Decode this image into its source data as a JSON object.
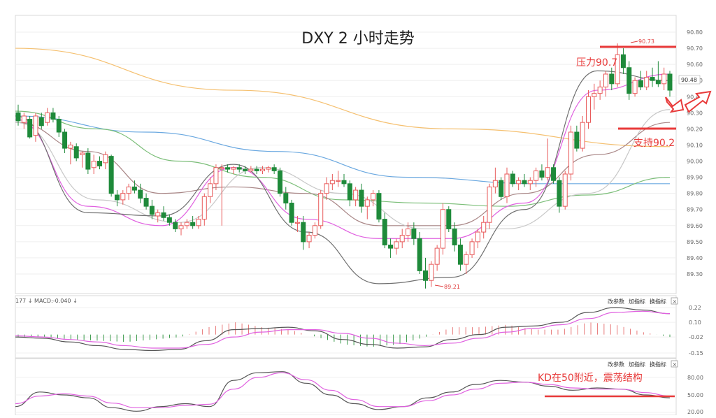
{
  "chart_data": [
    {
      "type": "candlestick",
      "title": "DXY 2 小时走势",
      "y_ticks": [
        "90.80",
        "90.70",
        "90.60",
        "90.50",
        "90.40",
        "90.30",
        "90.20",
        "90.10",
        "90.00",
        "89.90",
        "89.80",
        "89.70",
        "89.60",
        "89.50",
        "89.40",
        "89.30"
      ],
      "ylim": [
        89.21,
        90.85
      ],
      "last_price_label": "90.48",
      "high_label": "90.73",
      "low_label": "89.21",
      "high": 90.73,
      "low": 89.21,
      "grid": true,
      "annotations": [
        {
          "text": "压力90.7",
          "value": 90.7
        },
        {
          "text": "支持90.2",
          "value": 90.2
        }
      ],
      "series": [
        {
          "kind": "ohlc",
          "values": [
            [
              90.3,
              90.35,
              90.22,
              90.25
            ],
            [
              90.24,
              90.3,
              90.2,
              90.28
            ],
            [
              90.26,
              90.28,
              90.14,
              90.15
            ],
            [
              90.16,
              90.3,
              90.12,
              90.28
            ],
            [
              90.27,
              90.3,
              90.2,
              90.22
            ],
            [
              90.24,
              90.33,
              90.22,
              90.3
            ],
            [
              90.3,
              90.33,
              90.24,
              90.26
            ],
            [
              90.26,
              90.28,
              90.15,
              90.18
            ],
            [
              90.18,
              90.2,
              90.05,
              90.08
            ],
            [
              90.08,
              90.12,
              89.98,
              90.1
            ],
            [
              90.09,
              90.11,
              90.0,
              90.02
            ],
            [
              90.04,
              90.06,
              89.96,
              90.05
            ],
            [
              90.05,
              90.08,
              89.92,
              89.95
            ],
            [
              89.96,
              90.04,
              89.92,
              90.0
            ],
            [
              90.0,
              90.03,
              89.95,
              89.97
            ],
            [
              89.99,
              90.06,
              89.95,
              90.04
            ],
            [
              90.03,
              90.04,
              89.78,
              89.8
            ],
            [
              89.79,
              89.82,
              89.72,
              89.76
            ],
            [
              89.76,
              89.82,
              89.73,
              89.8
            ],
            [
              89.8,
              89.86,
              89.76,
              89.84
            ],
            [
              89.84,
              89.88,
              89.8,
              89.82
            ],
            [
              89.82,
              89.86,
              89.74,
              89.77
            ],
            [
              89.77,
              89.8,
              89.7,
              89.72
            ],
            [
              89.72,
              89.76,
              89.64,
              89.67
            ],
            [
              89.66,
              89.7,
              89.62,
              89.68
            ],
            [
              89.68,
              89.72,
              89.63,
              89.65
            ],
            [
              89.65,
              89.67,
              89.6,
              89.62
            ],
            [
              89.62,
              89.64,
              89.56,
              89.58
            ],
            [
              89.58,
              89.62,
              89.54,
              89.6
            ],
            [
              89.6,
              89.64,
              89.58,
              89.62
            ],
            [
              89.62,
              89.66,
              89.58,
              89.6
            ],
            [
              89.6,
              89.66,
              89.58,
              89.64
            ],
            [
              89.64,
              89.8,
              89.6,
              89.78
            ],
            [
              89.78,
              89.9,
              89.74,
              89.86
            ],
            [
              89.86,
              89.98,
              89.82,
              89.96
            ],
            [
              89.96,
              89.98,
              89.6,
              89.96
            ],
            [
              89.96,
              89.98,
              89.93,
              89.95
            ],
            [
              89.95,
              89.97,
              89.92,
              89.96
            ],
            [
              89.96,
              89.98,
              89.93,
              89.95
            ],
            [
              89.95,
              89.97,
              89.92,
              89.94
            ],
            [
              89.94,
              89.97,
              89.93,
              89.95
            ],
            [
              89.95,
              89.97,
              89.92,
              89.94
            ],
            [
              89.94,
              89.97,
              89.92,
              89.95
            ],
            [
              89.95,
              89.97,
              89.93,
              89.96
            ],
            [
              89.96,
              89.98,
              89.92,
              89.94
            ],
            [
              89.94,
              89.96,
              89.78,
              89.8
            ],
            [
              89.8,
              89.84,
              89.7,
              89.74
            ],
            [
              89.74,
              89.76,
              89.6,
              89.62
            ],
            [
              89.62,
              89.66,
              89.56,
              89.62
            ],
            [
              89.62,
              89.66,
              89.45,
              89.5
            ],
            [
              89.5,
              89.56,
              89.46,
              89.54
            ],
            [
              89.54,
              89.62,
              89.52,
              89.6
            ],
            [
              89.6,
              89.82,
              89.58,
              89.8
            ],
            [
              89.8,
              89.9,
              89.76,
              89.86
            ],
            [
              89.86,
              89.92,
              89.82,
              89.88
            ],
            [
              89.88,
              89.94,
              89.84,
              89.88
            ],
            [
              89.88,
              89.92,
              89.84,
              89.86
            ],
            [
              89.86,
              89.88,
              89.72,
              89.76
            ],
            [
              89.76,
              89.84,
              89.72,
              89.82
            ],
            [
              89.82,
              89.86,
              89.68,
              89.72
            ],
            [
              89.72,
              89.78,
              89.64,
              89.76
            ],
            [
              89.76,
              89.82,
              89.72,
              89.8
            ],
            [
              89.8,
              89.82,
              89.62,
              89.64
            ],
            [
              89.64,
              89.68,
              89.46,
              89.48
            ],
            [
              89.48,
              89.52,
              89.4,
              89.46
            ],
            [
              89.46,
              89.52,
              89.42,
              89.5
            ],
            [
              89.5,
              89.58,
              89.46,
              89.54
            ],
            [
              89.54,
              89.62,
              89.5,
              89.58
            ],
            [
              89.58,
              89.62,
              89.48,
              89.52
            ],
            [
              89.52,
              89.56,
              89.3,
              89.32
            ],
            [
              89.32,
              89.4,
              89.21,
              89.26
            ],
            [
              89.26,
              89.38,
              89.22,
              89.36
            ],
            [
              89.36,
              89.48,
              89.32,
              89.46
            ],
            [
              89.46,
              89.74,
              89.42,
              89.7
            ],
            [
              89.7,
              89.72,
              89.56,
              89.58
            ],
            [
              89.58,
              89.62,
              89.44,
              89.48
            ],
            [
              89.48,
              89.52,
              89.32,
              89.36
            ],
            [
              89.36,
              89.44,
              89.3,
              89.42
            ],
            [
              89.42,
              89.52,
              89.4,
              89.5
            ],
            [
              89.5,
              89.58,
              89.46,
              89.56
            ],
            [
              89.56,
              89.66,
              89.52,
              89.62
            ],
            [
              89.62,
              89.86,
              89.58,
              89.84
            ],
            [
              89.84,
              89.96,
              89.8,
              89.88
            ],
            [
              89.88,
              89.9,
              89.76,
              89.78
            ],
            [
              89.78,
              89.96,
              89.74,
              89.92
            ],
            [
              89.92,
              89.94,
              89.84,
              89.86
            ],
            [
              89.86,
              89.9,
              89.82,
              89.88
            ],
            [
              89.88,
              89.92,
              89.84,
              89.86
            ],
            [
              89.86,
              89.9,
              89.82,
              89.88
            ],
            [
              89.88,
              89.96,
              89.84,
              89.94
            ],
            [
              89.94,
              89.98,
              89.88,
              89.9
            ],
            [
              89.9,
              90.14,
              89.88,
              89.96
            ],
            [
              89.96,
              89.98,
              89.86,
              89.88
            ],
            [
              89.88,
              89.9,
              89.68,
              89.72
            ],
            [
              89.72,
              89.94,
              89.7,
              89.92
            ],
            [
              89.92,
              90.22,
              89.88,
              90.18
            ],
            [
              90.18,
              90.22,
              90.06,
              90.08
            ],
            [
              90.08,
              90.28,
              90.06,
              90.24
            ],
            [
              90.24,
              90.44,
              90.2,
              90.4
            ],
            [
              90.4,
              90.48,
              90.32,
              90.42
            ],
            [
              90.42,
              90.5,
              90.38,
              90.46
            ],
            [
              90.46,
              90.56,
              90.4,
              90.54
            ],
            [
              90.54,
              90.58,
              90.44,
              90.48
            ],
            [
              90.48,
              90.73,
              90.46,
              90.66
            ],
            [
              90.66,
              90.7,
              90.54,
              90.58
            ],
            [
              90.58,
              90.62,
              90.38,
              90.42
            ],
            [
              90.42,
              90.52,
              90.4,
              90.5
            ],
            [
              90.5,
              90.56,
              90.44,
              90.46
            ],
            [
              90.46,
              90.56,
              90.44,
              90.52
            ],
            [
              90.52,
              90.58,
              90.46,
              90.5
            ],
            [
              90.5,
              90.62,
              90.46,
              90.48
            ],
            [
              90.48,
              90.58,
              90.44,
              90.54
            ],
            [
              90.54,
              90.56,
              90.4,
              90.44
            ]
          ]
        },
        {
          "kind": "ma",
          "color": "#f5c070",
          "values": [
            90.7,
            90.44,
            90.2,
            90.09
          ]
        },
        {
          "kind": "ma",
          "color": "#6aa8e0",
          "values": [
            90.28,
            90.18,
            90.06,
            89.9,
            89.86,
            89.86
          ]
        },
        {
          "kind": "ma",
          "color": "#7dbf7a",
          "values": [
            90.31,
            90.2,
            90.0,
            89.9,
            89.76,
            89.74,
            89.72,
            89.79,
            89.9
          ]
        },
        {
          "kind": "ma",
          "color": "#a88585",
          "values": [
            90.24,
            90.06,
            89.8,
            89.84,
            89.8,
            89.6,
            89.6,
            89.8,
            90.04,
            90.24
          ]
        },
        {
          "kind": "ma",
          "color": "#c8c8c8",
          "values": [
            90.24,
            89.76,
            89.62,
            89.96,
            89.8,
            89.58,
            89.58,
            89.8,
            90.32
          ]
        },
        {
          "kind": "ma",
          "color": "#e060e0",
          "values": [
            90.26,
            89.72,
            89.6,
            89.96,
            89.64,
            89.52,
            89.52,
            89.74,
            90.44,
            90.54
          ]
        },
        {
          "kind": "ma",
          "color": "#707070",
          "values": [
            90.28,
            89.68,
            89.66,
            89.98,
            89.56,
            89.24,
            89.28,
            89.7,
            90.56,
            90.5
          ]
        }
      ]
    },
    {
      "type": "macd",
      "header": "177 ↓ MACD:-0.040 ↓",
      "controls": [
        "改参数",
        "加指标",
        "换指标"
      ],
      "close_glyph": "×",
      "y_ticks": [
        "0.22",
        "0.10",
        "-0.02",
        "-0.15"
      ],
      "ylim": [
        -0.17,
        0.25
      ],
      "series": [
        {
          "name": "DIF",
          "color": "#555555",
          "values": [
            -0.02,
            -0.03,
            -0.06,
            -0.09,
            -0.12,
            -0.13,
            -0.12,
            -0.05,
            0.04,
            0.05,
            0.06,
            0.03,
            -0.04,
            -0.08,
            -0.11,
            -0.1,
            -0.04,
            0.0,
            0.06,
            0.07,
            0.1,
            0.18,
            0.22,
            0.2,
            0.17
          ]
        },
        {
          "name": "DEA",
          "color": "#e060e0",
          "values": [
            -0.01,
            -0.02,
            -0.04,
            -0.06,
            -0.09,
            -0.11,
            -0.11,
            -0.08,
            -0.02,
            0.02,
            0.04,
            0.04,
            0.01,
            -0.03,
            -0.07,
            -0.09,
            -0.07,
            -0.03,
            0.02,
            0.05,
            0.08,
            0.13,
            0.18,
            0.19,
            0.17
          ]
        }
      ],
      "histogram": [
        -0.02,
        -0.02,
        -0.04,
        -0.05,
        -0.06,
        -0.04,
        -0.02,
        0.06,
        0.1,
        0.06,
        0.04,
        -0.02,
        -0.08,
        -0.1,
        -0.08,
        -0.02,
        0.06,
        0.06,
        0.08,
        0.04,
        0.04,
        0.1,
        0.08,
        0.02,
        -0.02
      ]
    },
    {
      "type": "kd",
      "controls": [
        "改参数",
        "加指标",
        "换指标"
      ],
      "close_glyph": "×",
      "y_ticks": [
        "80.00",
        "50.00",
        "20.00"
      ],
      "ylim": [
        15,
        100
      ],
      "annotations": [
        {
          "text": "KD在50附近，震荡结构",
          "value": 50
        }
      ],
      "series": [
        {
          "name": "K",
          "color": "#555555",
          "values": [
            30,
            55,
            50,
            45,
            28,
            22,
            30,
            35,
            30,
            75,
            88,
            90,
            70,
            50,
            35,
            25,
            30,
            45,
            55,
            68,
            75,
            72,
            65,
            58,
            62,
            60,
            50,
            45
          ]
        },
        {
          "name": "D",
          "color": "#e060e0",
          "values": [
            35,
            48,
            52,
            48,
            36,
            28,
            28,
            32,
            34,
            60,
            80,
            88,
            76,
            58,
            42,
            30,
            30,
            40,
            50,
            60,
            70,
            72,
            68,
            62,
            60,
            60,
            54,
            48
          ]
        }
      ]
    }
  ]
}
